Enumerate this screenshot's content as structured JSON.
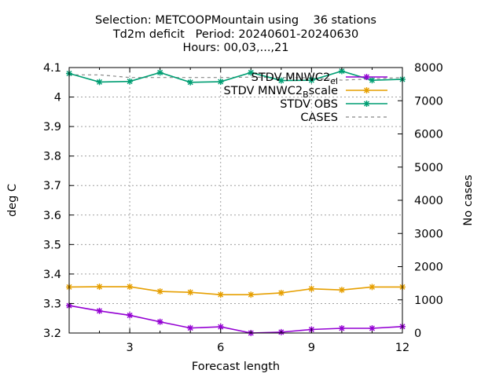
{
  "chart_data": {
    "type": "line",
    "title_lines": [
      "Selection: METCOOPMountain using    36 stations",
      "Td2m deficit   Period: 20240601-20240630",
      "Hours: 00,03,...,21"
    ],
    "xlabel": "Forecast length",
    "ylabel": "deg C",
    "y2label": "No cases",
    "xlim": [
      1,
      12
    ],
    "ylim": [
      3.2,
      4.1
    ],
    "y2lim": [
      0,
      8000
    ],
    "xticks": [
      3,
      6,
      9,
      12
    ],
    "yticks": [
      3.2,
      3.3,
      3.4,
      3.5,
      3.6,
      3.7,
      3.8,
      3.9,
      4,
      4.1
    ],
    "y2ticks": [
      0,
      1000,
      2000,
      3000,
      4000,
      5000,
      6000,
      7000,
      8000
    ],
    "xtick_labels": [
      "3",
      "6",
      "9",
      "12"
    ],
    "ytick_labels": [
      "3.2",
      "3.3",
      "3.4",
      "3.5",
      "3.6",
      "3.7",
      "3.8",
      "3.9",
      "4",
      "4.1"
    ],
    "y2tick_labels": [
      "0",
      "1000",
      "2000",
      "3000",
      "4000",
      "5000",
      "6000",
      "7000",
      "8000"
    ],
    "grid": true,
    "legend_position": "top-right",
    "x": [
      1,
      2,
      3,
      4,
      5,
      6,
      7,
      8,
      9,
      10,
      11,
      12
    ],
    "series": [
      {
        "name": "STDV MNWC2_el",
        "color": "#9400d3",
        "marker": "asterisk",
        "axis": "left",
        "values": [
          3.293,
          3.275,
          3.26,
          3.238,
          3.217,
          3.221,
          3.2,
          3.203,
          3.212,
          3.216,
          3.216,
          3.222
        ]
      },
      {
        "name": "STDV MNWC2_Bscale",
        "color": "#e69f00",
        "marker": "asterisk",
        "axis": "left",
        "values": [
          3.356,
          3.357,
          3.357,
          3.341,
          3.338,
          3.33,
          3.33,
          3.336,
          3.35,
          3.346,
          3.356,
          3.356
        ]
      },
      {
        "name": "STDV OBS",
        "color": "#009e73",
        "marker": "asterisk",
        "axis": "left",
        "values": [
          4.08,
          4.051,
          4.053,
          4.083,
          4.05,
          4.052,
          4.083,
          4.056,
          4.057,
          4.088,
          4.057,
          4.06
        ]
      },
      {
        "name": "CASES",
        "color": "#888888",
        "style": "dashed",
        "axis": "right",
        "values": [
          7780,
          7780,
          7700,
          7700,
          7700,
          7700,
          7710,
          7700,
          7690,
          7620,
          7660,
          7700
        ]
      }
    ],
    "legend": [
      {
        "label": "STDV MNWC2_el",
        "main": "STDV MNWC2",
        "sub": "el"
      },
      {
        "label": "STDV MNWC2_Bscale",
        "main": "STDV MNWC2",
        "sub": "B",
        "tail": "scale"
      },
      {
        "label": "STDV OBS",
        "main": "STDV OBS"
      },
      {
        "label": "CASES",
        "main": "CASES"
      }
    ]
  }
}
